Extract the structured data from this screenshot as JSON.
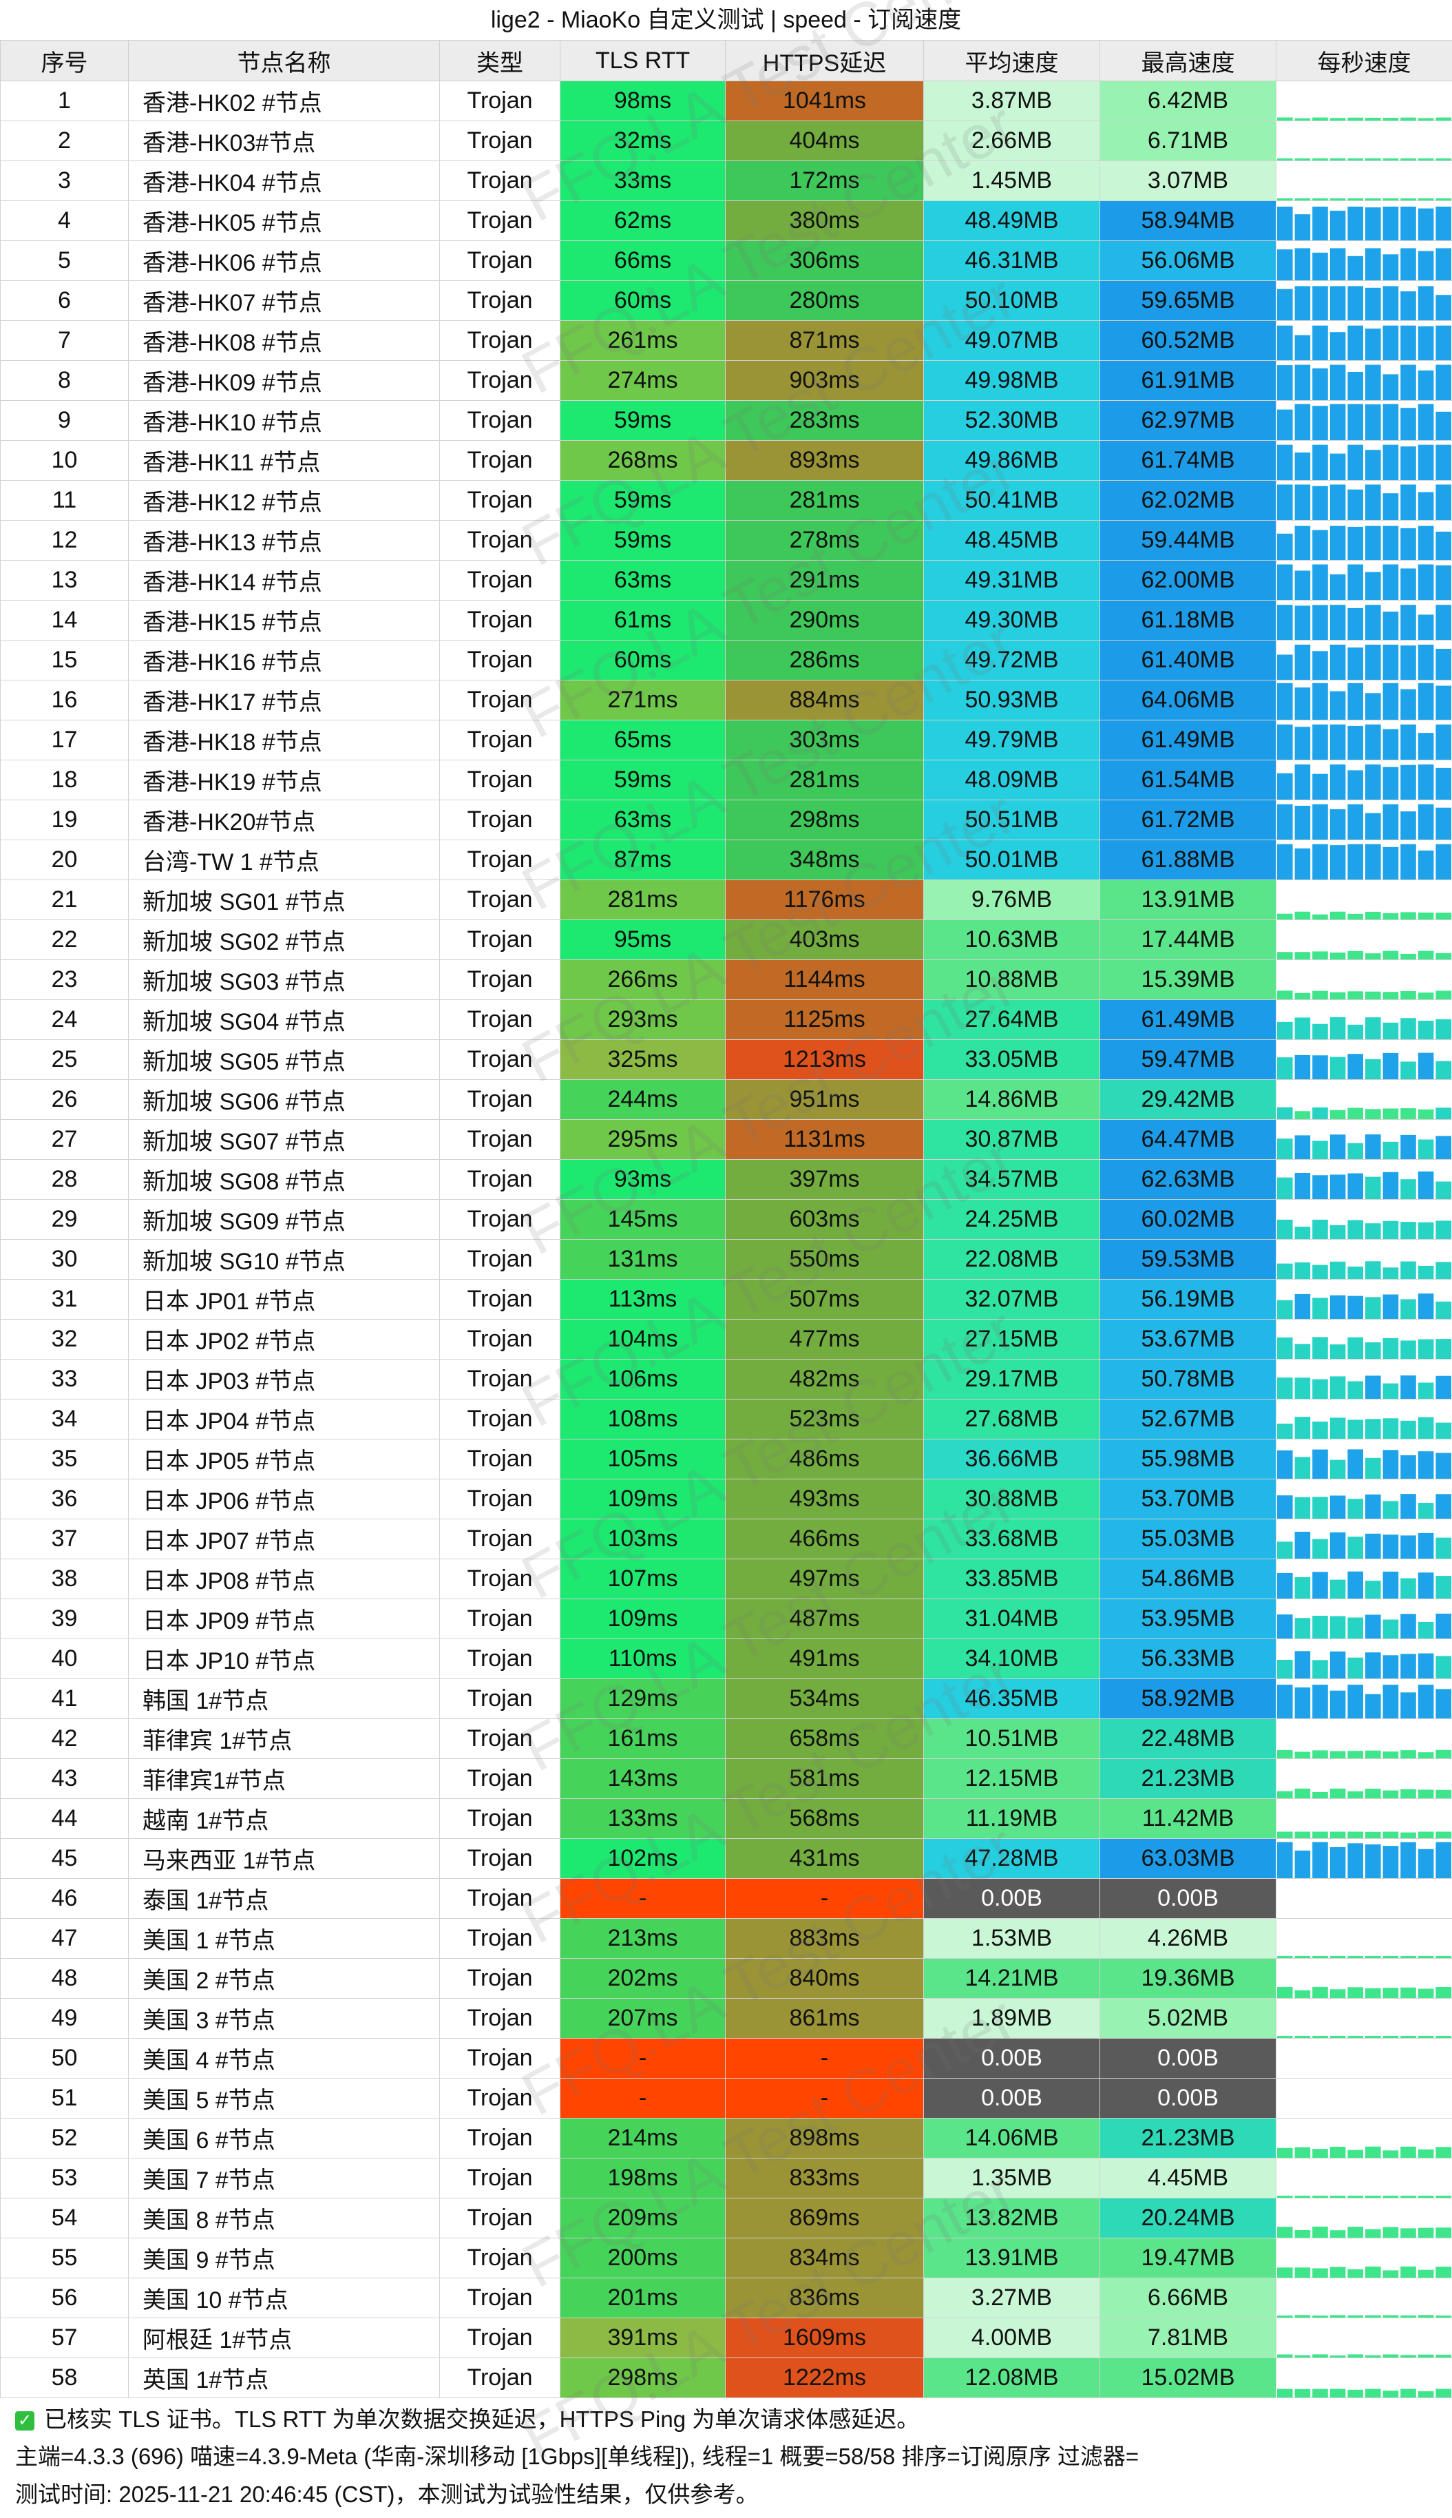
{
  "title": "lige2 - MiaoKo 自定义测试 | speed - 订阅速度",
  "columns": [
    "序号",
    "节点名称",
    "类型",
    "TLS RTT",
    "HTTPS延迟",
    "平均速度",
    "最高速度",
    "每秒速度"
  ],
  "rows": [
    [
      "1",
      "香港-HK02 #节点",
      "Trojan",
      "98ms",
      "1041ms",
      "3.87MB",
      "6.42MB"
    ],
    [
      "2",
      "香港-HK03#节点",
      "Trojan",
      "32ms",
      "404ms",
      "2.66MB",
      "6.71MB"
    ],
    [
      "3",
      "香港-HK04 #节点",
      "Trojan",
      "33ms",
      "172ms",
      "1.45MB",
      "3.07MB"
    ],
    [
      "4",
      "香港-HK05 #节点",
      "Trojan",
      "62ms",
      "380ms",
      "48.49MB",
      "58.94MB"
    ],
    [
      "5",
      "香港-HK06 #节点",
      "Trojan",
      "66ms",
      "306ms",
      "46.31MB",
      "56.06MB"
    ],
    [
      "6",
      "香港-HK07 #节点",
      "Trojan",
      "60ms",
      "280ms",
      "50.10MB",
      "59.65MB"
    ],
    [
      "7",
      "香港-HK08 #节点",
      "Trojan",
      "261ms",
      "871ms",
      "49.07MB",
      "60.52MB"
    ],
    [
      "8",
      "香港-HK09 #节点",
      "Trojan",
      "274ms",
      "903ms",
      "49.98MB",
      "61.91MB"
    ],
    [
      "9",
      "香港-HK10 #节点",
      "Trojan",
      "59ms",
      "283ms",
      "52.30MB",
      "62.97MB"
    ],
    [
      "10",
      "香港-HK11 #节点",
      "Trojan",
      "268ms",
      "893ms",
      "49.86MB",
      "61.74MB"
    ],
    [
      "11",
      "香港-HK12 #节点",
      "Trojan",
      "59ms",
      "281ms",
      "50.41MB",
      "62.02MB"
    ],
    [
      "12",
      "香港-HK13 #节点",
      "Trojan",
      "59ms",
      "278ms",
      "48.45MB",
      "59.44MB"
    ],
    [
      "13",
      "香港-HK14 #节点",
      "Trojan",
      "63ms",
      "291ms",
      "49.31MB",
      "62.00MB"
    ],
    [
      "14",
      "香港-HK15 #节点",
      "Trojan",
      "61ms",
      "290ms",
      "49.30MB",
      "61.18MB"
    ],
    [
      "15",
      "香港-HK16 #节点",
      "Trojan",
      "60ms",
      "286ms",
      "49.72MB",
      "61.40MB"
    ],
    [
      "16",
      "香港-HK17 #节点",
      "Trojan",
      "271ms",
      "884ms",
      "50.93MB",
      "64.06MB"
    ],
    [
      "17",
      "香港-HK18 #节点",
      "Trojan",
      "65ms",
      "303ms",
      "49.79MB",
      "61.49MB"
    ],
    [
      "18",
      "香港-HK19 #节点",
      "Trojan",
      "59ms",
      "281ms",
      "48.09MB",
      "61.54MB"
    ],
    [
      "19",
      "香港-HK20#节点",
      "Trojan",
      "63ms",
      "298ms",
      "50.51MB",
      "61.72MB"
    ],
    [
      "20",
      "台湾-TW 1 #节点",
      "Trojan",
      "87ms",
      "348ms",
      "50.01MB",
      "61.88MB"
    ],
    [
      "21",
      "新加坡 SG01 #节点",
      "Trojan",
      "281ms",
      "1176ms",
      "9.76MB",
      "13.91MB"
    ],
    [
      "22",
      "新加坡 SG02 #节点",
      "Trojan",
      "95ms",
      "403ms",
      "10.63MB",
      "17.44MB"
    ],
    [
      "23",
      "新加坡 SG03 #节点",
      "Trojan",
      "266ms",
      "1144ms",
      "10.88MB",
      "15.39MB"
    ],
    [
      "24",
      "新加坡 SG04 #节点",
      "Trojan",
      "293ms",
      "1125ms",
      "27.64MB",
      "61.49MB"
    ],
    [
      "25",
      "新加坡 SG05 #节点",
      "Trojan",
      "325ms",
      "1213ms",
      "33.05MB",
      "59.47MB"
    ],
    [
      "26",
      "新加坡 SG06 #节点",
      "Trojan",
      "244ms",
      "951ms",
      "14.86MB",
      "29.42MB"
    ],
    [
      "27",
      "新加坡 SG07 #节点",
      "Trojan",
      "295ms",
      "1131ms",
      "30.87MB",
      "64.47MB"
    ],
    [
      "28",
      "新加坡 SG08 #节点",
      "Trojan",
      "93ms",
      "397ms",
      "34.57MB",
      "62.63MB"
    ],
    [
      "29",
      "新加坡 SG09 #节点",
      "Trojan",
      "145ms",
      "603ms",
      "24.25MB",
      "60.02MB"
    ],
    [
      "30",
      "新加坡 SG10 #节点",
      "Trojan",
      "131ms",
      "550ms",
      "22.08MB",
      "59.53MB"
    ],
    [
      "31",
      "日本 JP01 #节点",
      "Trojan",
      "113ms",
      "507ms",
      "32.07MB",
      "56.19MB"
    ],
    [
      "32",
      "日本 JP02 #节点",
      "Trojan",
      "104ms",
      "477ms",
      "27.15MB",
      "53.67MB"
    ],
    [
      "33",
      "日本 JP03 #节点",
      "Trojan",
      "106ms",
      "482ms",
      "29.17MB",
      "50.78MB"
    ],
    [
      "34",
      "日本 JP04 #节点",
      "Trojan",
      "108ms",
      "523ms",
      "27.68MB",
      "52.67MB"
    ],
    [
      "35",
      "日本 JP05 #节点",
      "Trojan",
      "105ms",
      "486ms",
      "36.66MB",
      "55.98MB"
    ],
    [
      "36",
      "日本 JP06 #节点",
      "Trojan",
      "109ms",
      "493ms",
      "30.88MB",
      "53.70MB"
    ],
    [
      "37",
      "日本 JP07 #节点",
      "Trojan",
      "103ms",
      "466ms",
      "33.68MB",
      "55.03MB"
    ],
    [
      "38",
      "日本 JP08 #节点",
      "Trojan",
      "107ms",
      "497ms",
      "33.85MB",
      "54.86MB"
    ],
    [
      "39",
      "日本 JP09 #节点",
      "Trojan",
      "109ms",
      "487ms",
      "31.04MB",
      "53.95MB"
    ],
    [
      "40",
      "日本 JP10 #节点",
      "Trojan",
      "110ms",
      "491ms",
      "34.10MB",
      "56.33MB"
    ],
    [
      "41",
      "韩国 1#节点",
      "Trojan",
      "129ms",
      "534ms",
      "46.35MB",
      "58.92MB"
    ],
    [
      "42",
      "菲律宾 1#节点",
      "Trojan",
      "161ms",
      "658ms",
      "10.51MB",
      "22.48MB"
    ],
    [
      "43",
      "菲律宾1#节点",
      "Trojan",
      "143ms",
      "581ms",
      "12.15MB",
      "21.23MB"
    ],
    [
      "44",
      "越南 1#节点",
      "Trojan",
      "133ms",
      "568ms",
      "11.19MB",
      "11.42MB"
    ],
    [
      "45",
      "马来西亚 1#节点",
      "Trojan",
      "102ms",
      "431ms",
      "47.28MB",
      "63.03MB"
    ],
    [
      "46",
      "泰国 1#节点",
      "Trojan",
      "-",
      "-",
      "0.00B",
      "0.00B"
    ],
    [
      "47",
      "美国 1 #节点",
      "Trojan",
      "213ms",
      "883ms",
      "1.53MB",
      "4.26MB"
    ],
    [
      "48",
      "美国 2 #节点",
      "Trojan",
      "202ms",
      "840ms",
      "14.21MB",
      "19.36MB"
    ],
    [
      "49",
      "美国 3 #节点",
      "Trojan",
      "207ms",
      "861ms",
      "1.89MB",
      "5.02MB"
    ],
    [
      "50",
      "美国 4 #节点",
      "Trojan",
      "-",
      "-",
      "0.00B",
      "0.00B"
    ],
    [
      "51",
      "美国 5 #节点",
      "Trojan",
      "-",
      "-",
      "0.00B",
      "0.00B"
    ],
    [
      "52",
      "美国 6 #节点",
      "Trojan",
      "214ms",
      "898ms",
      "14.06MB",
      "21.23MB"
    ],
    [
      "53",
      "美国 7 #节点",
      "Trojan",
      "198ms",
      "833ms",
      "1.35MB",
      "4.45MB"
    ],
    [
      "54",
      "美国 8 #节点",
      "Trojan",
      "209ms",
      "869ms",
      "13.82MB",
      "20.24MB"
    ],
    [
      "55",
      "美国 9 #节点",
      "Trojan",
      "200ms",
      "834ms",
      "13.91MB",
      "19.47MB"
    ],
    [
      "56",
      "美国 10 #节点",
      "Trojan",
      "201ms",
      "836ms",
      "3.27MB",
      "6.66MB"
    ],
    [
      "57",
      "阿根廷 1#节点",
      "Trojan",
      "391ms",
      "1609ms",
      "4.00MB",
      "7.81MB"
    ],
    [
      "58",
      "英国 1#节点",
      "Trojan",
      "298ms",
      "1222ms",
      "12.08MB",
      "15.02MB"
    ]
  ],
  "footer": {
    "line1": "已核实 TLS 证书。TLS RTT 为单次数据交换延迟，HTTPS Ping 为单次请求体感延迟。",
    "line2": "主端=4.3.3 (696) 喵速=4.3.9-Meta (华南-深圳移动 [1Gbps][单线程]), 线程=1 概要=58/58 排序=订阅原序 过滤器=",
    "line3": "测试时间:  2025-11-21 20:46:45 (CST)，本测试为试验性结果，仅供参考。"
  },
  "watermark": "FFQ.LA Test Center",
  "colors": {
    "header_bg": "#ececec",
    "rtt_green": "#2ee06a",
    "rtt_red": "#ff4500",
    "https_olive": "#9a9a36",
    "https_orange": "#d86a23",
    "speed_cyan": "#27d4dc",
    "speed_blue": "#1e9be8",
    "zero_gray": "#5a5a5a"
  }
}
